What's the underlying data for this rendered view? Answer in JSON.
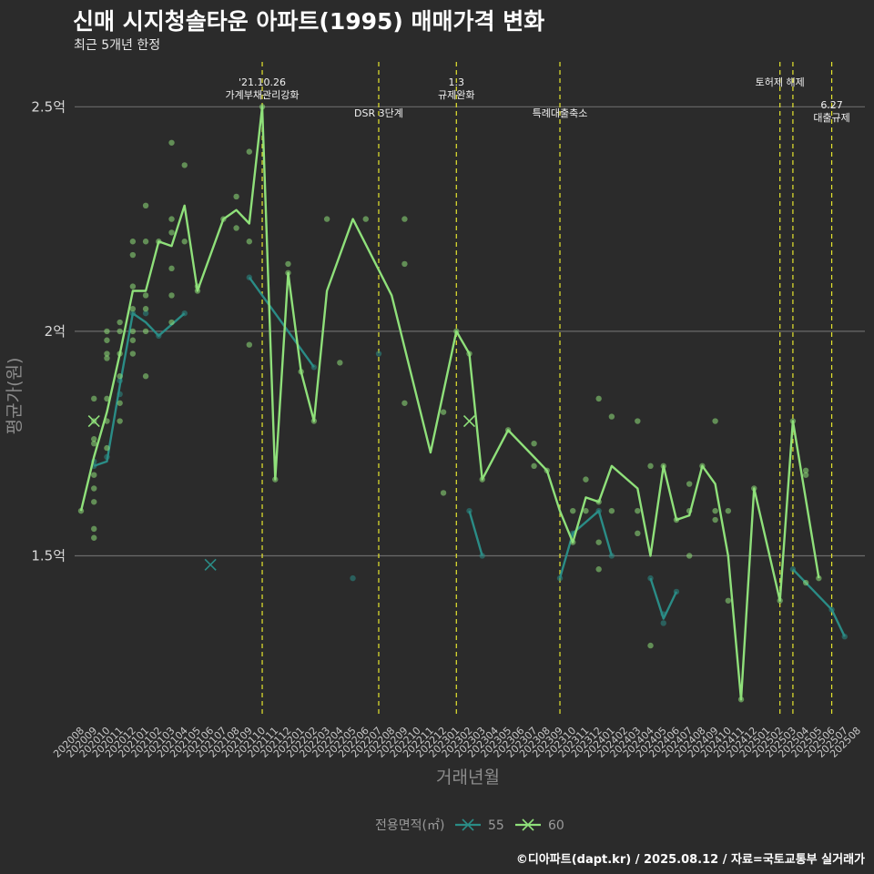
{
  "title": "신매 시지청솔타운 아파트(1995) 매매가격 변화",
  "subtitle": "최근 5개년 한정",
  "caption": "©디아파트(dapt.kr) / 2025.08.12 / 자료=국토교통부 실거래가",
  "colors": {
    "background": "#2b2b2b",
    "grid": "#6b6b6b",
    "event_line": "#e6e62e",
    "series_55": "#2a8c86",
    "series_60": "#8fe07a"
  },
  "chart_data": {
    "type": "line",
    "xlabel": "거래년월",
    "ylabel": "평균가(원)",
    "ylim": [
      1.14,
      2.6
    ],
    "yticks": [
      {
        "value": 1.5,
        "label": "1.5억"
      },
      {
        "value": 2.0,
        "label": "2억"
      },
      {
        "value": 2.5,
        "label": "2.5억"
      }
    ],
    "grid": "horizontal",
    "categories": [
      "202008",
      "202009",
      "202010",
      "202011",
      "202012",
      "202101",
      "202102",
      "202103",
      "202104",
      "202105",
      "202106",
      "202107",
      "202108",
      "202109",
      "202110",
      "202111",
      "202112",
      "202201",
      "202202",
      "202203",
      "202204",
      "202205",
      "202206",
      "202207",
      "202208",
      "202209",
      "202210",
      "202211",
      "202212",
      "202301",
      "202302",
      "202303",
      "202304",
      "202305",
      "202306",
      "202307",
      "202308",
      "202309",
      "202310",
      "202311",
      "202312",
      "202401",
      "202402",
      "202403",
      "202404",
      "202405",
      "202406",
      "202407",
      "202408",
      "202409",
      "202410",
      "202411",
      "202412",
      "202501",
      "202502",
      "202503",
      "202504",
      "202505",
      "202506",
      "202507",
      "202508"
    ],
    "legend": {
      "title": "전용면적(㎡)",
      "position": "bottom"
    },
    "events": [
      {
        "x": "202110",
        "label": [
          "'21.10.26",
          "가계부채관리강화"
        ],
        "label_row": "upper"
      },
      {
        "x": "202207",
        "label": [
          "DSR 3단계"
        ],
        "label_row": "lower"
      },
      {
        "x": "202301",
        "label": [
          "1.3",
          "규제완화"
        ],
        "label_row": "upper"
      },
      {
        "x": "202309",
        "label": [
          "특례대출축소"
        ],
        "label_row": "lower"
      },
      {
        "x": "202502",
        "label": [
          "토허제 해제"
        ],
        "label_row": "upper"
      },
      {
        "x": "202503",
        "label": [],
        "label_row": "upper"
      },
      {
        "x": "202506",
        "label": [
          "6.27",
          "대출규제"
        ],
        "label_row": "middle"
      }
    ],
    "series": [
      {
        "name": "55",
        "color": "#2a8c86",
        "line": [
          [
            "202009",
            1.7
          ],
          [
            "202010",
            1.71
          ],
          [
            "202011",
            1.88
          ],
          [
            "202012",
            2.04
          ],
          [
            "202101",
            2.02
          ],
          [
            "202102",
            1.99
          ],
          [
            "202104",
            2.04
          ],
          null,
          [
            "202109",
            2.12
          ],
          [
            "202202",
            1.92
          ],
          null,
          [
            "202302",
            1.6
          ],
          [
            "202303",
            1.5
          ],
          null,
          [
            "202309",
            1.45
          ],
          [
            "202310",
            1.55
          ],
          [
            "202312",
            1.6
          ],
          [
            "202401",
            1.5
          ],
          null,
          [
            "202404",
            1.45
          ],
          [
            "202405",
            1.36
          ],
          [
            "202406",
            1.42
          ],
          null,
          [
            "202503",
            1.47
          ],
          [
            "202506",
            1.38
          ],
          [
            "202507",
            1.32
          ]
        ],
        "points": [
          [
            "202009",
            1.7
          ],
          [
            "202009",
            1.71
          ],
          [
            "202010",
            1.72
          ],
          [
            "202011",
            1.86
          ],
          [
            "202011",
            1.89
          ],
          [
            "202012",
            2.04
          ],
          [
            "202101",
            2.04
          ],
          [
            "202102",
            1.99
          ],
          [
            "202104",
            2.04
          ],
          [
            "202109",
            2.12
          ],
          [
            "202202",
            1.92
          ],
          [
            "202205",
            1.45
          ],
          [
            "202207",
            1.95
          ],
          [
            "202302",
            1.6
          ],
          [
            "202303",
            1.5
          ],
          [
            "202309",
            1.45
          ],
          [
            "202310",
            1.55
          ],
          [
            "202312",
            1.6
          ],
          [
            "202401",
            1.5
          ],
          [
            "202404",
            1.45
          ],
          [
            "202405",
            1.35
          ],
          [
            "202405",
            1.37
          ],
          [
            "202406",
            1.42
          ],
          [
            "202503",
            1.47
          ],
          [
            "202506",
            1.38
          ],
          [
            "202507",
            1.32
          ]
        ],
        "markers": [
          [
            "202106",
            1.48
          ]
        ]
      },
      {
        "name": "60",
        "color": "#8fe07a",
        "line": [
          [
            "202008",
            1.6
          ],
          [
            "202009",
            1.72
          ],
          [
            "202010",
            1.82
          ],
          [
            "202011",
            1.95
          ],
          [
            "202012",
            2.09
          ],
          [
            "202101",
            2.09
          ],
          [
            "202102",
            2.2
          ],
          [
            "202103",
            2.19
          ],
          [
            "202104",
            2.28
          ],
          [
            "202105",
            2.09
          ],
          [
            "202107",
            2.25
          ],
          [
            "202108",
            2.27
          ],
          [
            "202109",
            2.24
          ],
          [
            "202110",
            2.5
          ],
          [
            "202111",
            1.67
          ],
          [
            "202112",
            2.13
          ],
          [
            "202201",
            1.91
          ],
          [
            "202202",
            1.8
          ],
          [
            "202203",
            2.09
          ],
          [
            "202205",
            2.25
          ],
          [
            "202208",
            2.08
          ],
          [
            "202211",
            1.73
          ],
          [
            "202301",
            2.0
          ],
          [
            "202302",
            1.95
          ],
          [
            "202303",
            1.67
          ],
          [
            "202305",
            1.78
          ],
          [
            "202307",
            1.72
          ],
          [
            "202308",
            1.69
          ],
          [
            "202309",
            1.6
          ],
          [
            "202310",
            1.53
          ],
          [
            "202311",
            1.63
          ],
          [
            "202312",
            1.62
          ],
          [
            "202401",
            1.7
          ],
          [
            "202403",
            1.65
          ],
          [
            "202404",
            1.5
          ],
          [
            "202405",
            1.7
          ],
          [
            "202406",
            1.58
          ],
          [
            "202407",
            1.59
          ],
          [
            "202408",
            1.7
          ],
          [
            "202409",
            1.66
          ],
          [
            "202410",
            1.5
          ],
          [
            "202411",
            1.18
          ],
          [
            "202412",
            1.65
          ],
          [
            "202502",
            1.4
          ],
          [
            "202503",
            1.8
          ],
          [
            "202505",
            1.45
          ]
        ],
        "points": [
          [
            "202008",
            1.6
          ],
          [
            "202009",
            1.54
          ],
          [
            "202009",
            1.56
          ],
          [
            "202009",
            1.62
          ],
          [
            "202009",
            1.65
          ],
          [
            "202009",
            1.68
          ],
          [
            "202009",
            1.75
          ],
          [
            "202009",
            1.76
          ],
          [
            "202009",
            1.8
          ],
          [
            "202009",
            1.85
          ],
          [
            "202010",
            1.74
          ],
          [
            "202010",
            1.8
          ],
          [
            "202010",
            1.85
          ],
          [
            "202010",
            1.94
          ],
          [
            "202010",
            1.95
          ],
          [
            "202010",
            1.98
          ],
          [
            "202010",
            2.0
          ],
          [
            "202011",
            1.8
          ],
          [
            "202011",
            1.84
          ],
          [
            "202011",
            1.9
          ],
          [
            "202011",
            1.95
          ],
          [
            "202011",
            2.0
          ],
          [
            "202011",
            2.02
          ],
          [
            "202012",
            1.95
          ],
          [
            "202012",
            1.98
          ],
          [
            "202012",
            2.0
          ],
          [
            "202012",
            2.05
          ],
          [
            "202012",
            2.1
          ],
          [
            "202012",
            2.17
          ],
          [
            "202012",
            2.2
          ],
          [
            "202101",
            1.9
          ],
          [
            "202101",
            2.0
          ],
          [
            "202101",
            2.05
          ],
          [
            "202101",
            2.08
          ],
          [
            "202101",
            2.2
          ],
          [
            "202101",
            2.28
          ],
          [
            "202102",
            2.2
          ],
          [
            "202103",
            2.02
          ],
          [
            "202103",
            2.08
          ],
          [
            "202103",
            2.14
          ],
          [
            "202103",
            2.22
          ],
          [
            "202103",
            2.25
          ],
          [
            "202103",
            2.42
          ],
          [
            "202104",
            2.2
          ],
          [
            "202104",
            2.37
          ],
          [
            "202105",
            2.09
          ],
          [
            "202105",
            2.1
          ],
          [
            "202107",
            2.25
          ],
          [
            "202108",
            2.23
          ],
          [
            "202108",
            2.3
          ],
          [
            "202109",
            1.97
          ],
          [
            "202109",
            2.2
          ],
          [
            "202109",
            2.4
          ],
          [
            "202110",
            2.5
          ],
          [
            "202111",
            1.67
          ],
          [
            "202112",
            2.13
          ],
          [
            "202112",
            2.15
          ],
          [
            "202201",
            1.91
          ],
          [
            "202202",
            1.8
          ],
          [
            "202203",
            2.25
          ],
          [
            "202204",
            1.93
          ],
          [
            "202206",
            2.25
          ],
          [
            "202209",
            1.84
          ],
          [
            "202209",
            2.15
          ],
          [
            "202209",
            2.25
          ],
          [
            "202212",
            1.64
          ],
          [
            "202212",
            1.82
          ],
          [
            "202301",
            2.0
          ],
          [
            "202302",
            1.95
          ],
          [
            "202303",
            1.67
          ],
          [
            "202305",
            1.78
          ],
          [
            "202307",
            1.7
          ],
          [
            "202307",
            1.75
          ],
          [
            "202308",
            1.69
          ],
          [
            "202310",
            1.53
          ],
          [
            "202310",
            1.6
          ],
          [
            "202311",
            1.6
          ],
          [
            "202311",
            1.67
          ],
          [
            "202312",
            1.47
          ],
          [
            "202312",
            1.53
          ],
          [
            "202312",
            1.62
          ],
          [
            "202312",
            1.85
          ],
          [
            "202401",
            1.6
          ],
          [
            "202401",
            1.81
          ],
          [
            "202403",
            1.55
          ],
          [
            "202403",
            1.6
          ],
          [
            "202403",
            1.8
          ],
          [
            "202404",
            1.3
          ],
          [
            "202404",
            1.7
          ],
          [
            "202405",
            1.7
          ],
          [
            "202406",
            1.58
          ],
          [
            "202407",
            1.5
          ],
          [
            "202407",
            1.6
          ],
          [
            "202407",
            1.66
          ],
          [
            "202408",
            1.7
          ],
          [
            "202409",
            1.58
          ],
          [
            "202409",
            1.6
          ],
          [
            "202409",
            1.8
          ],
          [
            "202410",
            1.4
          ],
          [
            "202410",
            1.6
          ],
          [
            "202411",
            1.18
          ],
          [
            "202412",
            1.65
          ],
          [
            "202502",
            1.4
          ],
          [
            "202503",
            1.8
          ],
          [
            "202504",
            1.44
          ],
          [
            "202504",
            1.68
          ],
          [
            "202504",
            1.69
          ],
          [
            "202505",
            1.45
          ]
        ],
        "markers": [
          [
            "202009",
            1.8
          ],
          [
            "202302",
            1.8
          ]
        ]
      }
    ]
  }
}
